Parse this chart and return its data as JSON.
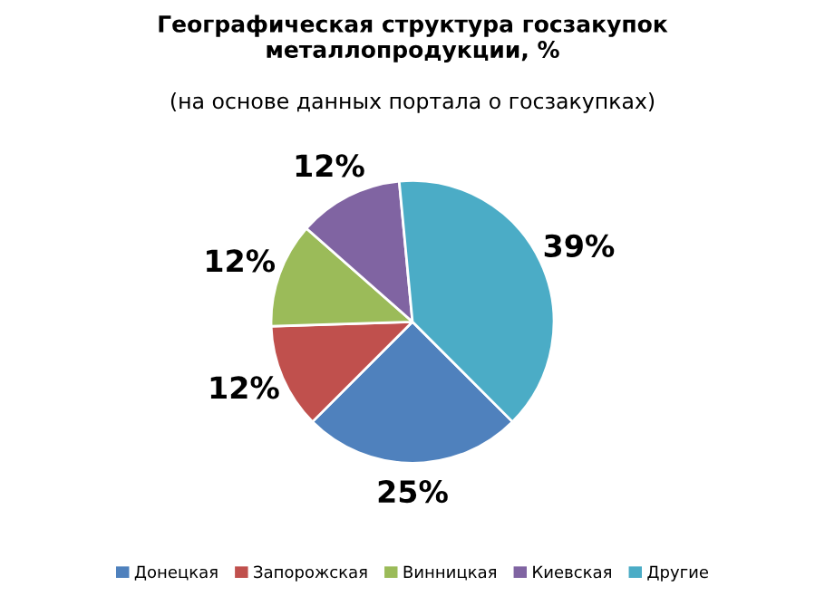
{
  "chart_data": {
    "type": "pie",
    "title": "Географическая структура госзакупок\nметаллопродукции, %",
    "subtitle": "(на основе данных портала о госзакупках)",
    "categories": [
      "Донецкая",
      "Запорожская",
      "Винницкая",
      "Киевская",
      "Другие"
    ],
    "values": [
      25,
      12,
      12,
      12,
      39
    ],
    "value_labels": [
      "25%",
      "12%",
      "12%",
      "12%",
      "39%"
    ],
    "colors": [
      "#4f81bd",
      "#c0504d",
      "#9bbb59",
      "#8064a2",
      "#4bacc6"
    ],
    "legend": "bottom"
  }
}
